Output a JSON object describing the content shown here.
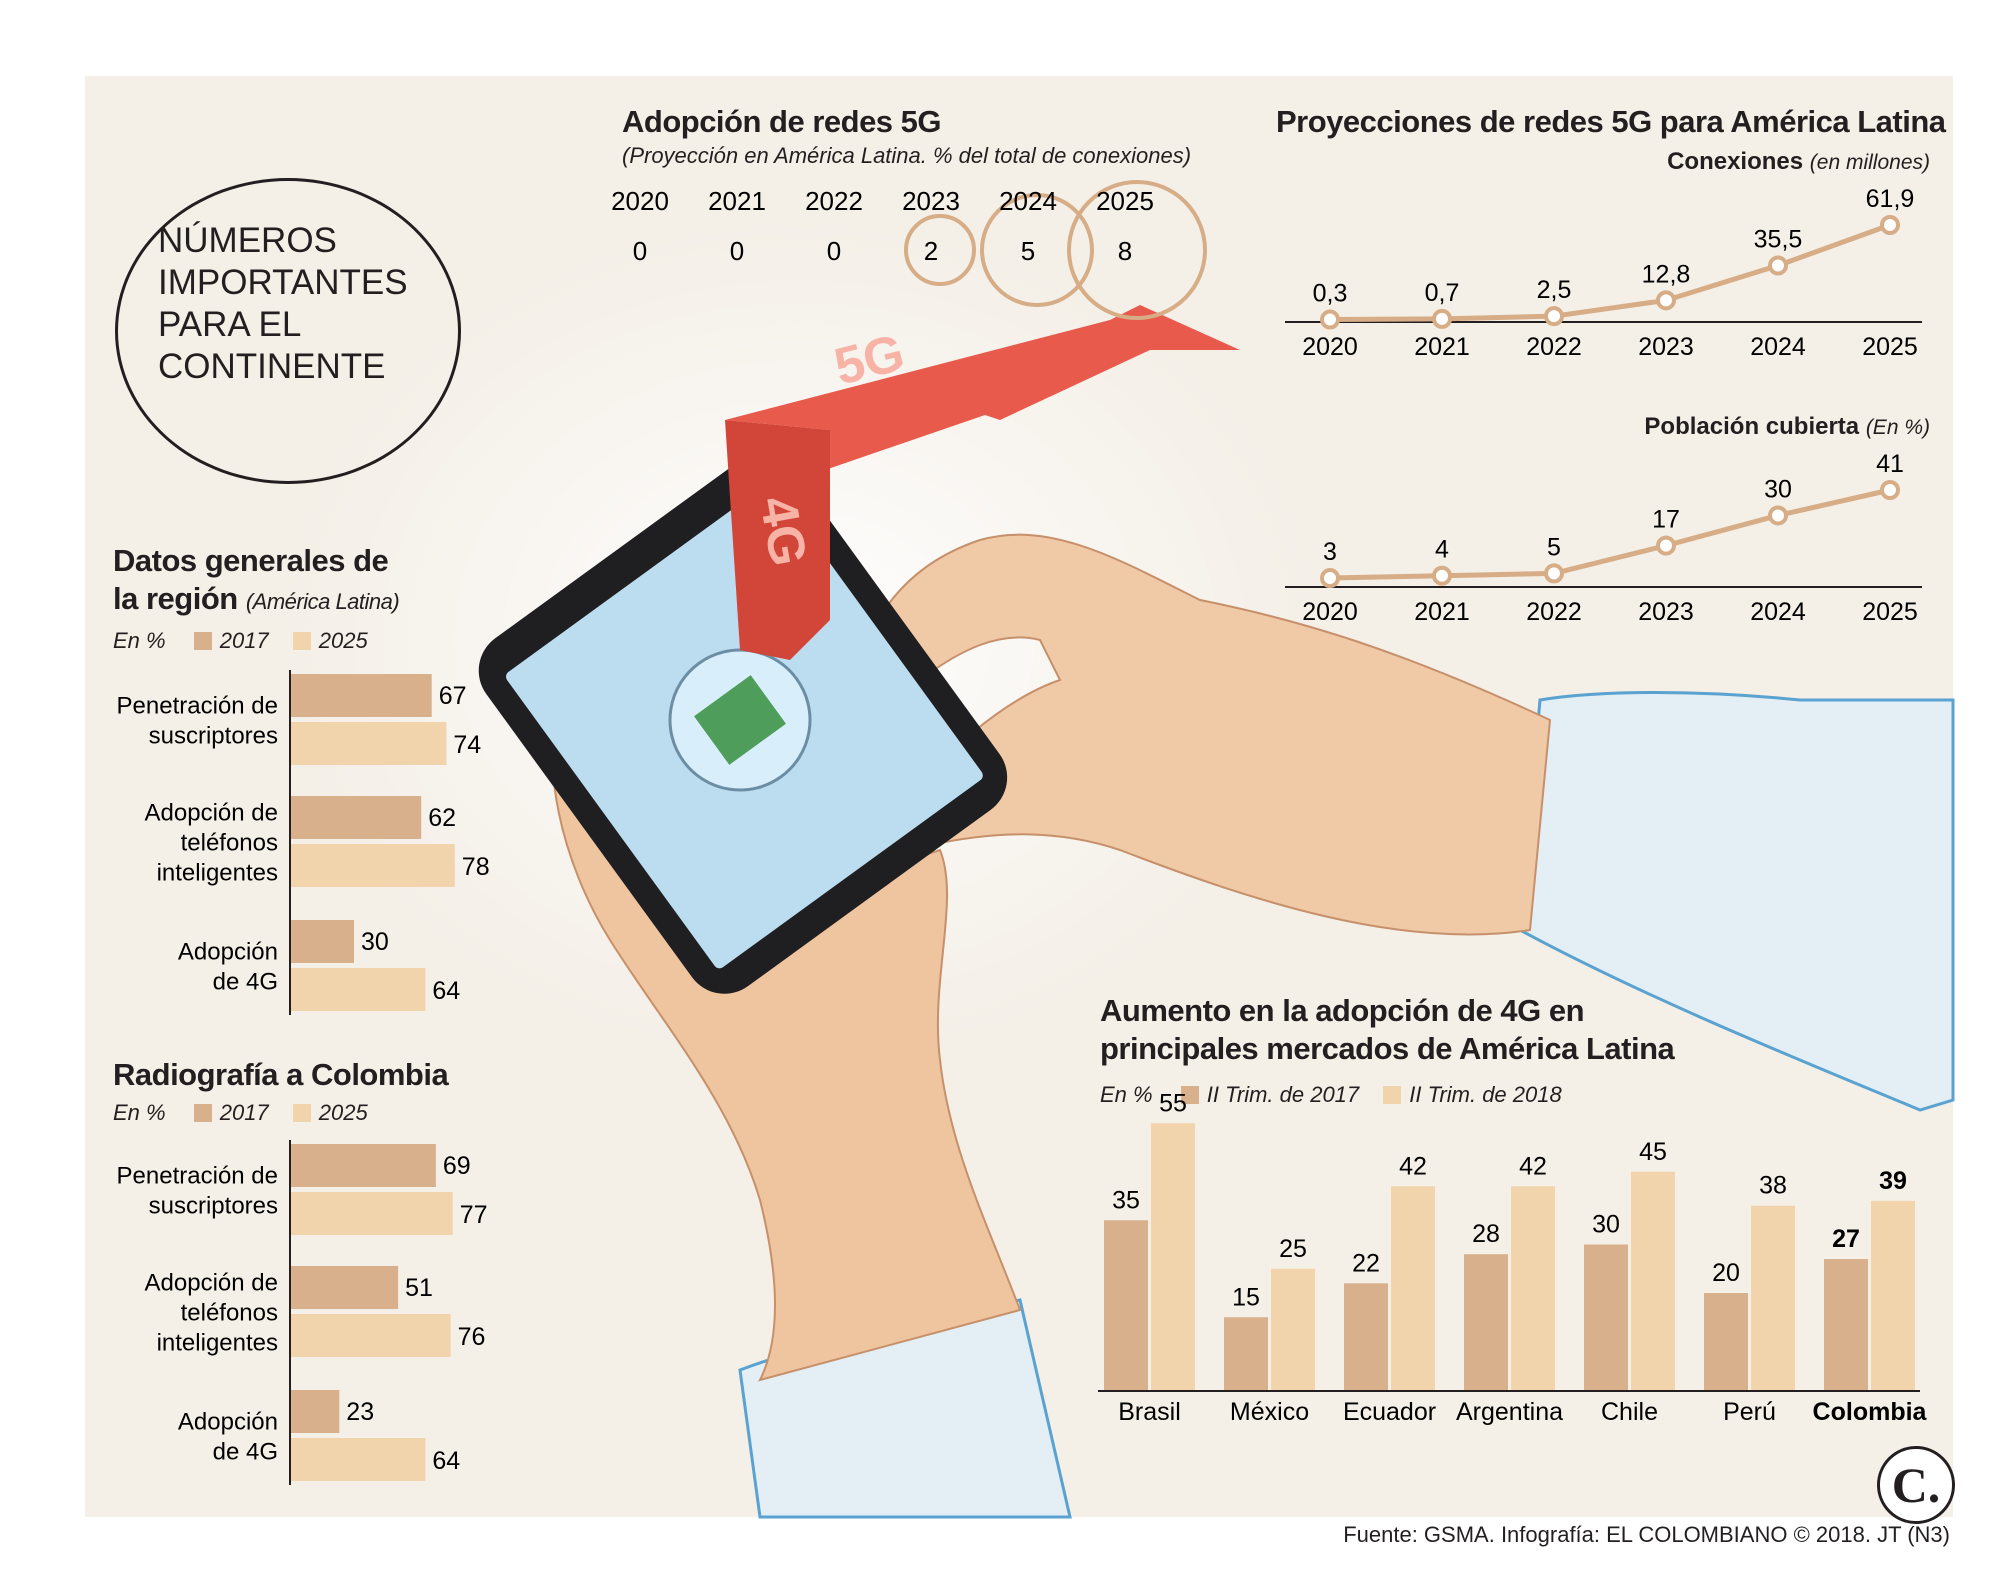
{
  "badge": {
    "lines": [
      "NÚMEROS",
      "IMPORTANTES",
      "PARA EL",
      "CONTINENTE"
    ]
  },
  "colors": {
    "c2017": "#d9b08c",
    "c2025": "#f1d4ac",
    "line": "#d6ad86",
    "arrow": "#e85a4c",
    "panel": "#f4efe7"
  },
  "illustration": {
    "arrow_labels": [
      "5G",
      "4G"
    ],
    "icons": [
      "smartphone-icon",
      "hands-icon",
      "arrow-icon"
    ]
  },
  "adoption5g": {
    "title": "Adopción de redes 5G",
    "subtitle": "(Proyección en América Latina. % del total de conexiones)",
    "years": [
      "2020",
      "2021",
      "2022",
      "2023",
      "2024",
      "2025"
    ],
    "values": [
      "0",
      "0",
      "0",
      "2",
      "5",
      "8"
    ]
  },
  "projections": {
    "title": "Proyecciones de redes 5G para América Latina",
    "connections": {
      "label": "Conexiones",
      "unit": "(en millones)",
      "years": [
        "2020",
        "2021",
        "2022",
        "2023",
        "2024",
        "2025"
      ],
      "labels": [
        "0,3",
        "0,7",
        "2,5",
        "12,8",
        "35,5",
        "61,9"
      ]
    },
    "coverage": {
      "label": "Población cubierta",
      "unit": "(En %)",
      "years": [
        "2020",
        "2021",
        "2022",
        "2023",
        "2024",
        "2025"
      ],
      "labels": [
        "3",
        "4",
        "5",
        "17",
        "30",
        "41"
      ]
    }
  },
  "region": {
    "title_line1": "Datos generales de",
    "title_line2": "la región",
    "title_suffix": "(América Latina)",
    "unit": "En %",
    "legend_a": "2017",
    "legend_b": "2025",
    "groups": [
      {
        "label": "Penetración de\nsuscriptores",
        "a": "67",
        "b": "74"
      },
      {
        "label": "Adopción de\nteléfonos\ninteligentes",
        "a": "62",
        "b": "78"
      },
      {
        "label": "Adopción\nde 4G",
        "a": "30",
        "b": "64"
      }
    ]
  },
  "colombia": {
    "title": "Radiografía a Colombia",
    "unit": "En %",
    "legend_a": "2017",
    "legend_b": "2025",
    "groups": [
      {
        "label": "Penetración de\nsuscriptores",
        "a": "69",
        "b": "77"
      },
      {
        "label": "Adopción de\nteléfonos\ninteligentes",
        "a": "51",
        "b": "76"
      },
      {
        "label": "Adopción\nde 4G",
        "a": "23",
        "b": "64"
      }
    ]
  },
  "markets": {
    "title_line1": "Aumento en la adopción de 4G en",
    "title_line2": "principales mercados de América Latina",
    "unit": "En %",
    "legend_a": "II Trim. de 2017",
    "legend_b": "II Trim. de 2018",
    "countries": [
      "Brasil",
      "México",
      "Ecuador",
      "Argentina",
      "Chile",
      "Perú",
      "Colombia"
    ],
    "a": [
      "35",
      "15",
      "22",
      "28",
      "30",
      "20",
      "27"
    ],
    "b": [
      "55",
      "25",
      "42",
      "42",
      "45",
      "38",
      "39"
    ]
  },
  "logo": {
    "text": "C."
  },
  "source": "Fuente: GSMA. Infografía: EL COLOMBIANO © 2018. JT (N3)",
  "chart_data": [
    {
      "type": "table",
      "title": "Adopción de redes 5G",
      "subtitle": "(Proyección en América Latina. % del total de conexiones)",
      "x": [
        2020,
        2021,
        2022,
        2023,
        2024,
        2025
      ],
      "values": [
        0,
        0,
        0,
        2,
        5,
        8
      ]
    },
    {
      "type": "line",
      "title": "Conexiones",
      "x": [
        2020,
        2021,
        2022,
        2023,
        2024,
        2025
      ],
      "values": [
        0.3,
        0.7,
        2.5,
        12.8,
        35.5,
        61.9
      ],
      "ylim": [
        0,
        61.9
      ]
    },
    {
      "type": "line",
      "title": "Población cubierta",
      "x": [
        2020,
        2021,
        2022,
        2023,
        2024,
        2025
      ],
      "values": [
        3,
        4,
        5,
        17,
        30,
        41
      ],
      "ylim": [
        0,
        41
      ]
    },
    {
      "type": "bar",
      "title": "Datos generales de la región",
      "categories": [
        "Penetración de suscriptores",
        "Adopción de teléfonos inteligentes",
        "Adopción de 4G"
      ],
      "series": [
        {
          "name": "2017",
          "values": [
            67,
            62,
            30
          ]
        },
        {
          "name": "2025",
          "values": [
            74,
            78,
            64
          ]
        }
      ],
      "xlim": [
        0,
        100
      ]
    },
    {
      "type": "bar",
      "title": "Radiografía a Colombia",
      "categories": [
        "Penetración de suscriptores",
        "Adopción de teléfonos inteligentes",
        "Adopción de 4G"
      ],
      "series": [
        {
          "name": "2017",
          "values": [
            69,
            51,
            23
          ]
        },
        {
          "name": "2025",
          "values": [
            77,
            76,
            64
          ]
        }
      ],
      "xlim": [
        0,
        100
      ]
    },
    {
      "type": "bar",
      "title": "Aumento en la adopción de 4G en principales mercados de América Latina",
      "categories": [
        "Brasil",
        "México",
        "Ecuador",
        "Argentina",
        "Chile",
        "Perú",
        "Colombia"
      ],
      "series": [
        {
          "name": "II Trim. de 2017",
          "values": [
            35,
            15,
            22,
            28,
            30,
            20,
            27
          ]
        },
        {
          "name": "II Trim. de 2018",
          "values": [
            55,
            25,
            42,
            42,
            45,
            38,
            39
          ]
        }
      ],
      "ylim": [
        0,
        60
      ]
    }
  ]
}
